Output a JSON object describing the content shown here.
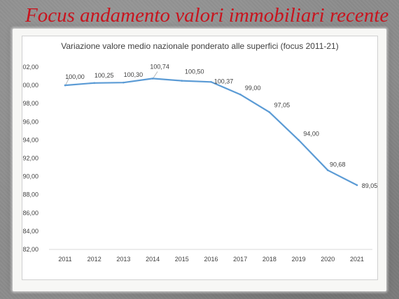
{
  "slide": {
    "title": "Focus andamento valori immobiliari recente"
  },
  "chart_data": {
    "type": "line",
    "title": "Variazione valore medio nazionale ponderato alle superfici (focus 2011-21)",
    "xlabel": "",
    "ylabel": "",
    "categories": [
      "2011",
      "2012",
      "2013",
      "2014",
      "2015",
      "2016",
      "2017",
      "2018",
      "2019",
      "2020",
      "2021"
    ],
    "series": [
      {
        "values": [
          100.0,
          100.25,
          100.3,
          100.74,
          100.5,
          100.37,
          99.0,
          97.05,
          94.0,
          90.68,
          89.05
        ]
      }
    ],
    "data_labels": [
      "100,00",
      "100,25",
      "100,30",
      "100,74",
      "100,50",
      "100,37",
      "99,00",
      "97,05",
      "94,00",
      "90,68",
      "89,05"
    ],
    "y_ticks": [
      "82,00",
      "84,00",
      "86,00",
      "88,00",
      "90,00",
      "92,00",
      "94,00",
      "96,00",
      "98,00",
      "100,00",
      "102,00"
    ],
    "ylim": [
      82,
      102
    ],
    "grid": false,
    "legend": "none",
    "line_color": "#5b9bd5"
  }
}
